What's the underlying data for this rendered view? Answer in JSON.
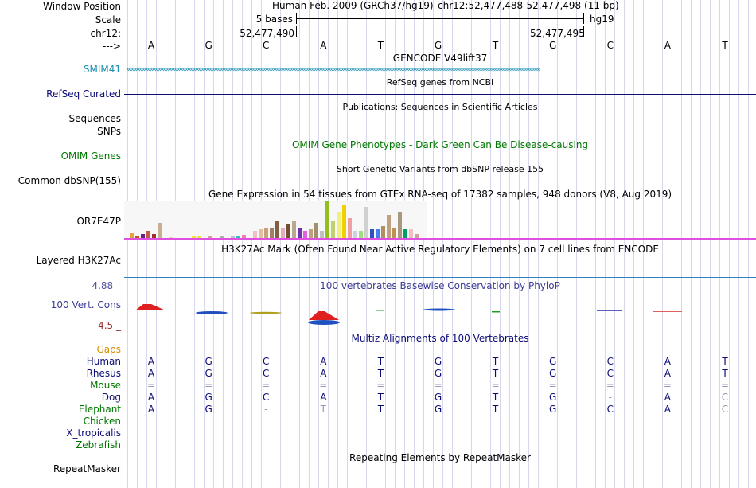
{
  "ruler": {
    "window_position_label": "Window Position",
    "scale_label": "Scale",
    "chrom_label": "chr12:",
    "arrow_label": "--->",
    "assembly_text": "Human Feb. 2009 (GRCh37/hg19)",
    "position_text": "chr12:52,477,488-52,477,498 (11 bp)",
    "scale_text": "5 bases",
    "db_text": "hg19",
    "coord_left": "52,477,490",
    "coord_right": "52,477,495",
    "bases": [
      "A",
      "G",
      "C",
      "A",
      "T",
      "G",
      "T",
      "G",
      "C",
      "A",
      "T"
    ]
  },
  "tracks": {
    "gencode": {
      "title": "GENCODE V49lift37",
      "gene_label": "SMIM41"
    },
    "refseq": {
      "title": "RefSeq genes from NCBI",
      "label": "RefSeq Curated"
    },
    "publications": {
      "title": "Publications: Sequences in Scientific Articles"
    },
    "sequences": {
      "label": "Sequences"
    },
    "snps": {
      "label": "SNPs"
    },
    "omim": {
      "label": "OMIM Genes",
      "title": "OMIM Gene Phenotypes - Dark Green Can Be Disease-causing"
    },
    "dbsnp": {
      "label": "Common dbSNP(155)",
      "title": "Short Genetic Variants from dbSNP release 155"
    },
    "gtex": {
      "title": "Gene Expression in 54 tissues from GTEx RNA-seq of 17382 samples, 948 donors (V8, Aug 2019)",
      "gene_label": "OR7E47P"
    },
    "h3k27ac": {
      "label": "Layered H3K27Ac",
      "title": "H3K27Ac Mark (Often Found Near Active Regulatory Elements) on 7 cell lines from ENCODE"
    },
    "conservation": {
      "label": "100 Vert. Cons",
      "title": "100 vertebrates Basewise Conservation by PhyloP",
      "max_label": "4.88 _",
      "min_label": "-4.5 _"
    },
    "multiz": {
      "title": "Multiz Alignments of 100 Vertebrates",
      "gaps_label": "Gaps",
      "species": [
        {
          "name": "Human",
          "bases": [
            "A",
            "G",
            "C",
            "A",
            "T",
            "G",
            "T",
            "G",
            "C",
            "A",
            "T"
          ]
        },
        {
          "name": "Rhesus",
          "bases": [
            "A",
            "G",
            "C",
            "A",
            "T",
            "G",
            "T",
            "G",
            "C",
            "A",
            "T"
          ]
        },
        {
          "name": "Mouse",
          "bases": [
            "=",
            "=",
            "=",
            "=",
            "=",
            "=",
            "=",
            "=",
            "=",
            "=",
            "="
          ]
        },
        {
          "name": "Dog",
          "bases": [
            "A",
            "G",
            "C",
            "A",
            "T",
            "G",
            "T",
            "G",
            "-",
            "A",
            "C"
          ]
        },
        {
          "name": "Elephant",
          "bases": [
            "A",
            "G",
            "-",
            "T",
            "T",
            "G",
            "T",
            "G",
            "C",
            "A",
            "C"
          ]
        },
        {
          "name": "Chicken",
          "bases": []
        },
        {
          "name": "X_tropicalis",
          "bases": []
        },
        {
          "name": "Zebrafish",
          "bases": []
        }
      ]
    },
    "repeatmasker": {
      "label": "RepeatMasker",
      "title": "Repeating Elements by RepeatMasker"
    }
  },
  "colors": {
    "gencode": "#1a8fb0",
    "refseq": "#0c0c78",
    "omim": "#007800",
    "cons_label": "#3c3c96",
    "cons_max": "#5050a0",
    "cons_min": "#963232",
    "gaps": "#e08c00",
    "dim_base": "#9898b8",
    "grid": "#d8d8ec",
    "pink": "#e050e0"
  }
}
